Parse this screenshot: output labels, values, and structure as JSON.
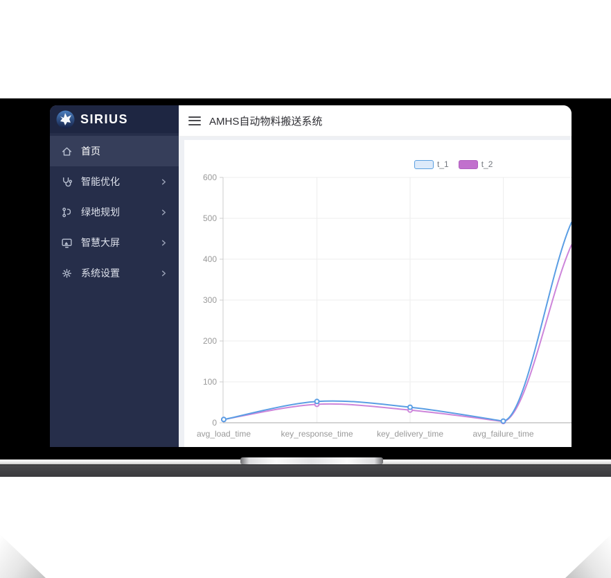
{
  "header": {
    "title": "AMHS自动物料搬送系统"
  },
  "sidebar": {
    "logo_text": "SIRIUS",
    "items": [
      {
        "label": "首页",
        "icon": "home-icon",
        "active": true,
        "has_submenu": false
      },
      {
        "label": "智能优化",
        "icon": "smart-optimization-icon",
        "active": false,
        "has_submenu": true
      },
      {
        "label": "绿地规划",
        "icon": "green-planning-icon",
        "active": false,
        "has_submenu": true
      },
      {
        "label": "智慧大屏",
        "icon": "smart-screen-icon",
        "active": false,
        "has_submenu": true
      },
      {
        "label": "系统设置",
        "icon": "system-settings-icon",
        "active": false,
        "has_submenu": true
      }
    ]
  },
  "chart_data": {
    "type": "line",
    "smooth": true,
    "categories": [
      "avg_load_time",
      "key_response_time",
      "key_delivery_time",
      "avg_failure_time"
    ],
    "series": [
      {
        "name": "t_1",
        "color": "#5a9ee4",
        "legend_fill": "#ddeafa",
        "legend_border": "#5a9fe0",
        "values": [
          8,
          52,
          38,
          4
        ],
        "value_at_right_clip": 490
      },
      {
        "name": "t_2",
        "color": "#cd85da",
        "legend_fill": "#c170cd",
        "legend_border": "#b05fc0",
        "values": [
          8,
          45,
          31,
          3
        ],
        "value_at_right_clip": 435
      }
    ],
    "ylim": [
      0,
      600
    ],
    "y_ticks": [
      0,
      100,
      200,
      300,
      400,
      500,
      600
    ],
    "grid": true,
    "legend_position": "top-center",
    "right_edge_note": "both lines rise sharply after avg_failure_time and are clipped at the right edge of the visible chart"
  },
  "colors": {
    "sidebar_bg": "#262e4a",
    "sidebar_logo_bg": "#1e2642",
    "sidebar_active_bg": "#363e5a",
    "header_bg": "#ffffff",
    "axis_label": "#999999",
    "gridline": "#ededed",
    "device_bezel": "#000000",
    "base_bar": "#3c3c3e"
  }
}
